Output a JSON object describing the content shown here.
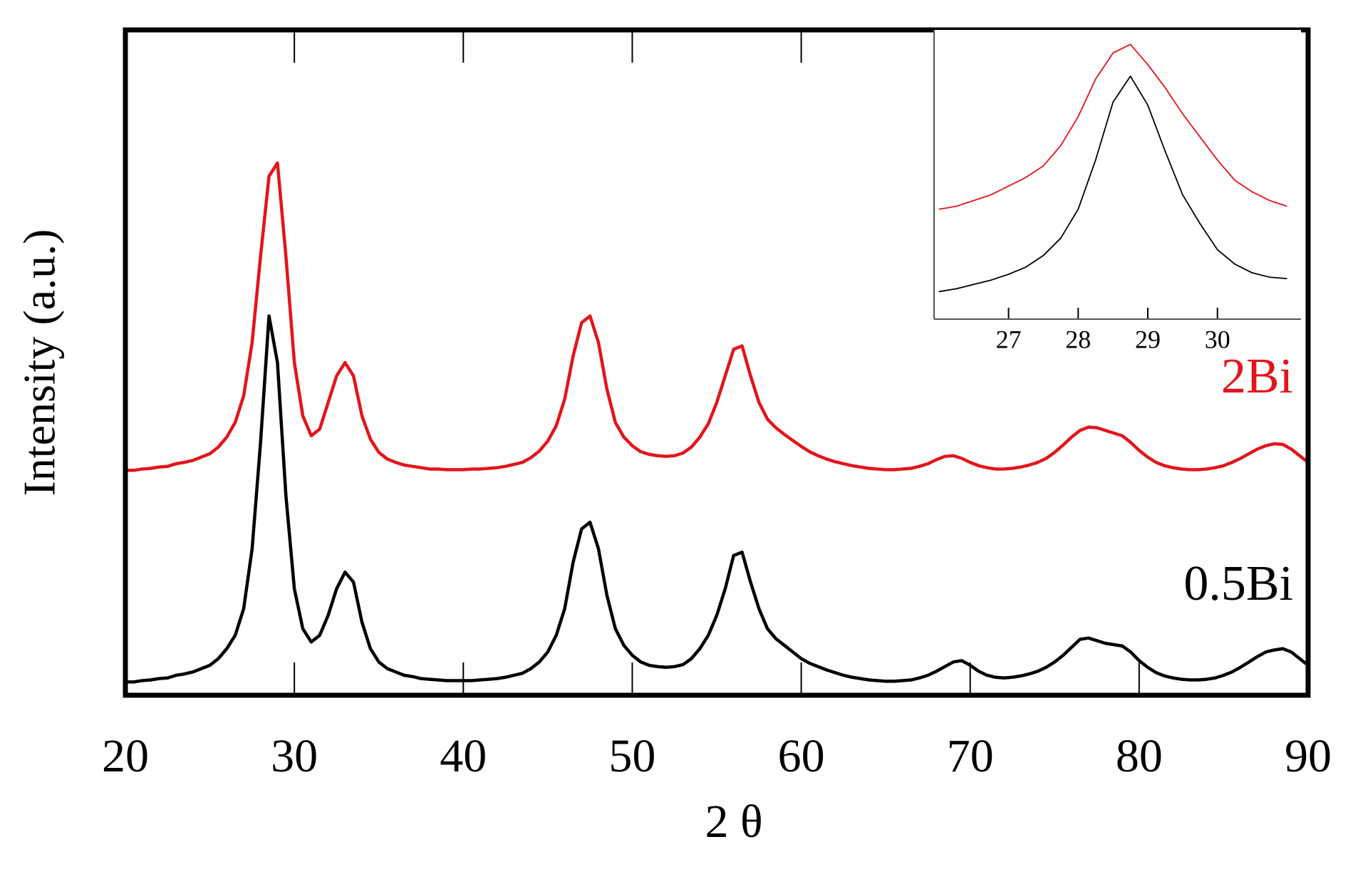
{
  "chart_data": [
    {
      "type": "line",
      "x_label": "2 θ",
      "y_label": "Intensity (a.u.)",
      "xlim": [
        20,
        90
      ],
      "xticks": [
        20,
        30,
        40,
        50,
        60,
        70,
        80,
        90
      ],
      "ylim": [
        0,
        100
      ],
      "x": [
        20,
        20.5,
        21,
        21.5,
        22,
        22.5,
        23,
        23.5,
        24,
        24.5,
        25,
        25.5,
        26,
        26.5,
        27,
        27.5,
        28,
        28.5,
        29,
        29.5,
        30,
        30.5,
        31,
        31.5,
        32,
        32.5,
        33,
        33.5,
        34,
        34.5,
        35,
        35.5,
        36,
        36.5,
        37,
        37.5,
        38,
        38.5,
        39,
        39.5,
        40,
        40.5,
        41,
        41.5,
        42,
        42.5,
        43,
        43.5,
        44,
        44.5,
        45,
        45.5,
        46,
        46.5,
        47,
        47.5,
        48,
        48.5,
        49,
        49.5,
        50,
        50.5,
        51,
        51.5,
        52,
        52.5,
        53,
        53.5,
        54,
        54.5,
        55,
        55.5,
        56,
        56.5,
        57,
        57.5,
        58,
        58.5,
        59,
        59.5,
        60,
        60.5,
        61,
        61.5,
        62,
        62.5,
        63,
        63.5,
        64,
        64.5,
        65,
        65.5,
        66,
        66.5,
        67,
        67.5,
        68,
        68.5,
        69,
        69.5,
        70,
        70.5,
        71,
        71.5,
        72,
        72.5,
        73,
        73.5,
        74,
        74.5,
        75,
        75.5,
        76,
        76.5,
        77,
        77.5,
        78,
        78.5,
        79,
        79.5,
        80,
        80.5,
        81,
        81.5,
        82,
        82.5,
        83,
        83.5,
        84,
        84.5,
        85,
        85.5,
        86,
        86.5,
        87,
        87.5,
        88,
        88.5,
        89,
        89.5,
        90
      ],
      "series": [
        {
          "name": "0.5Bi",
          "color": "#000000",
          "values": [
            2,
            2,
            2.2,
            2.3,
            2.5,
            2.6,
            3,
            3.2,
            3.5,
            4,
            4.5,
            5.5,
            7,
            9,
            13,
            22,
            38,
            57,
            50,
            30,
            16,
            10,
            8,
            9,
            12,
            16,
            18.5,
            17,
            11,
            7,
            5,
            4,
            3.5,
            3,
            2.8,
            2.5,
            2.4,
            2.3,
            2.2,
            2.2,
            2.2,
            2.2,
            2.3,
            2.4,
            2.5,
            2.7,
            3,
            3.3,
            4,
            5,
            6.5,
            9,
            13,
            20,
            25,
            26,
            22,
            15,
            10,
            7.5,
            6,
            5,
            4.5,
            4.3,
            4.2,
            4.3,
            4.6,
            5.5,
            7,
            9,
            12,
            16,
            21,
            21.5,
            17,
            13,
            10,
            8.5,
            7.5,
            6.5,
            5.5,
            4.8,
            4.3,
            3.8,
            3.4,
            3,
            2.7,
            2.5,
            2.3,
            2.2,
            2.1,
            2.1,
            2.2,
            2.3,
            2.6,
            3,
            3.6,
            4.3,
            5,
            5.2,
            4.5,
            3.6,
            3,
            2.7,
            2.6,
            2.7,
            2.9,
            3.2,
            3.6,
            4.2,
            5,
            6,
            7.2,
            8.4,
            8.6,
            8.2,
            7.8,
            7.6,
            7.4,
            6.5,
            5.2,
            4.2,
            3.4,
            2.9,
            2.6,
            2.4,
            2.3,
            2.3,
            2.4,
            2.6,
            3,
            3.5,
            4.2,
            5,
            5.8,
            6.5,
            6.8,
            7,
            6.5,
            5.5,
            4.5
          ]
        },
        {
          "name": "2Bi",
          "color": "#e3141b",
          "values": [
            33.8,
            33.8,
            34,
            34.1,
            34.3,
            34.4,
            34.8,
            35,
            35.3,
            35.8,
            36.3,
            37.3,
            38.8,
            41,
            45,
            53,
            66,
            78,
            80,
            66,
            50,
            42,
            39,
            40,
            44,
            48,
            50,
            48,
            42,
            38.5,
            36.5,
            35.5,
            35,
            34.6,
            34.4,
            34.2,
            34,
            34,
            33.9,
            33.9,
            33.9,
            34,
            34,
            34.1,
            34.2,
            34.4,
            34.7,
            35,
            35.7,
            36.7,
            38.2,
            40.5,
            44.5,
            51,
            56,
            57,
            53,
            46,
            41,
            38.8,
            37.5,
            36.6,
            36.2,
            36,
            35.9,
            36,
            36.4,
            37.3,
            38.8,
            40.8,
            44,
            48,
            52,
            52.5,
            48,
            44,
            41.5,
            40.2,
            39.2,
            38.3,
            37.4,
            36.6,
            36,
            35.5,
            35.1,
            34.8,
            34.5,
            34.3,
            34.1,
            34,
            33.9,
            33.9,
            34,
            34.1,
            34.4,
            34.8,
            35.4,
            35.9,
            36,
            35.6,
            35,
            34.5,
            34.2,
            34,
            34,
            34.1,
            34.3,
            34.6,
            35,
            35.6,
            36.5,
            37.6,
            38.8,
            39.8,
            40.3,
            40.2,
            39.8,
            39.4,
            39,
            38,
            36.8,
            35.8,
            35,
            34.5,
            34.2,
            34,
            33.9,
            33.9,
            34,
            34.2,
            34.5,
            35,
            35.6,
            36.3,
            37,
            37.5,
            37.8,
            37.7,
            37,
            36,
            35
          ]
        }
      ]
    },
    {
      "type": "line",
      "xlim": [
        25.93,
        31.2
      ],
      "xticks": [
        27,
        28,
        29,
        30
      ],
      "ylim": [
        0,
        100
      ],
      "x": [
        26,
        26.25,
        26.5,
        26.75,
        27,
        27.25,
        27.5,
        27.75,
        28,
        28.25,
        28.5,
        28.75,
        29,
        29.25,
        29.5,
        29.75,
        30,
        30.25,
        30.5,
        30.75,
        31
      ],
      "series": [
        {
          "color": "#000000",
          "values": [
            9.5,
            10.5,
            12,
            13.5,
            15.5,
            18,
            22,
            28,
            38,
            55,
            75,
            84,
            74,
            58,
            43,
            33,
            24,
            19,
            16,
            14.5,
            14
          ]
        },
        {
          "color": "#e3141b",
          "values": [
            38,
            39,
            41,
            43,
            46,
            49,
            53,
            60,
            70,
            83,
            92,
            95,
            88,
            80,
            71,
            63,
            55,
            48,
            44,
            41,
            39
          ]
        }
      ]
    }
  ]
}
